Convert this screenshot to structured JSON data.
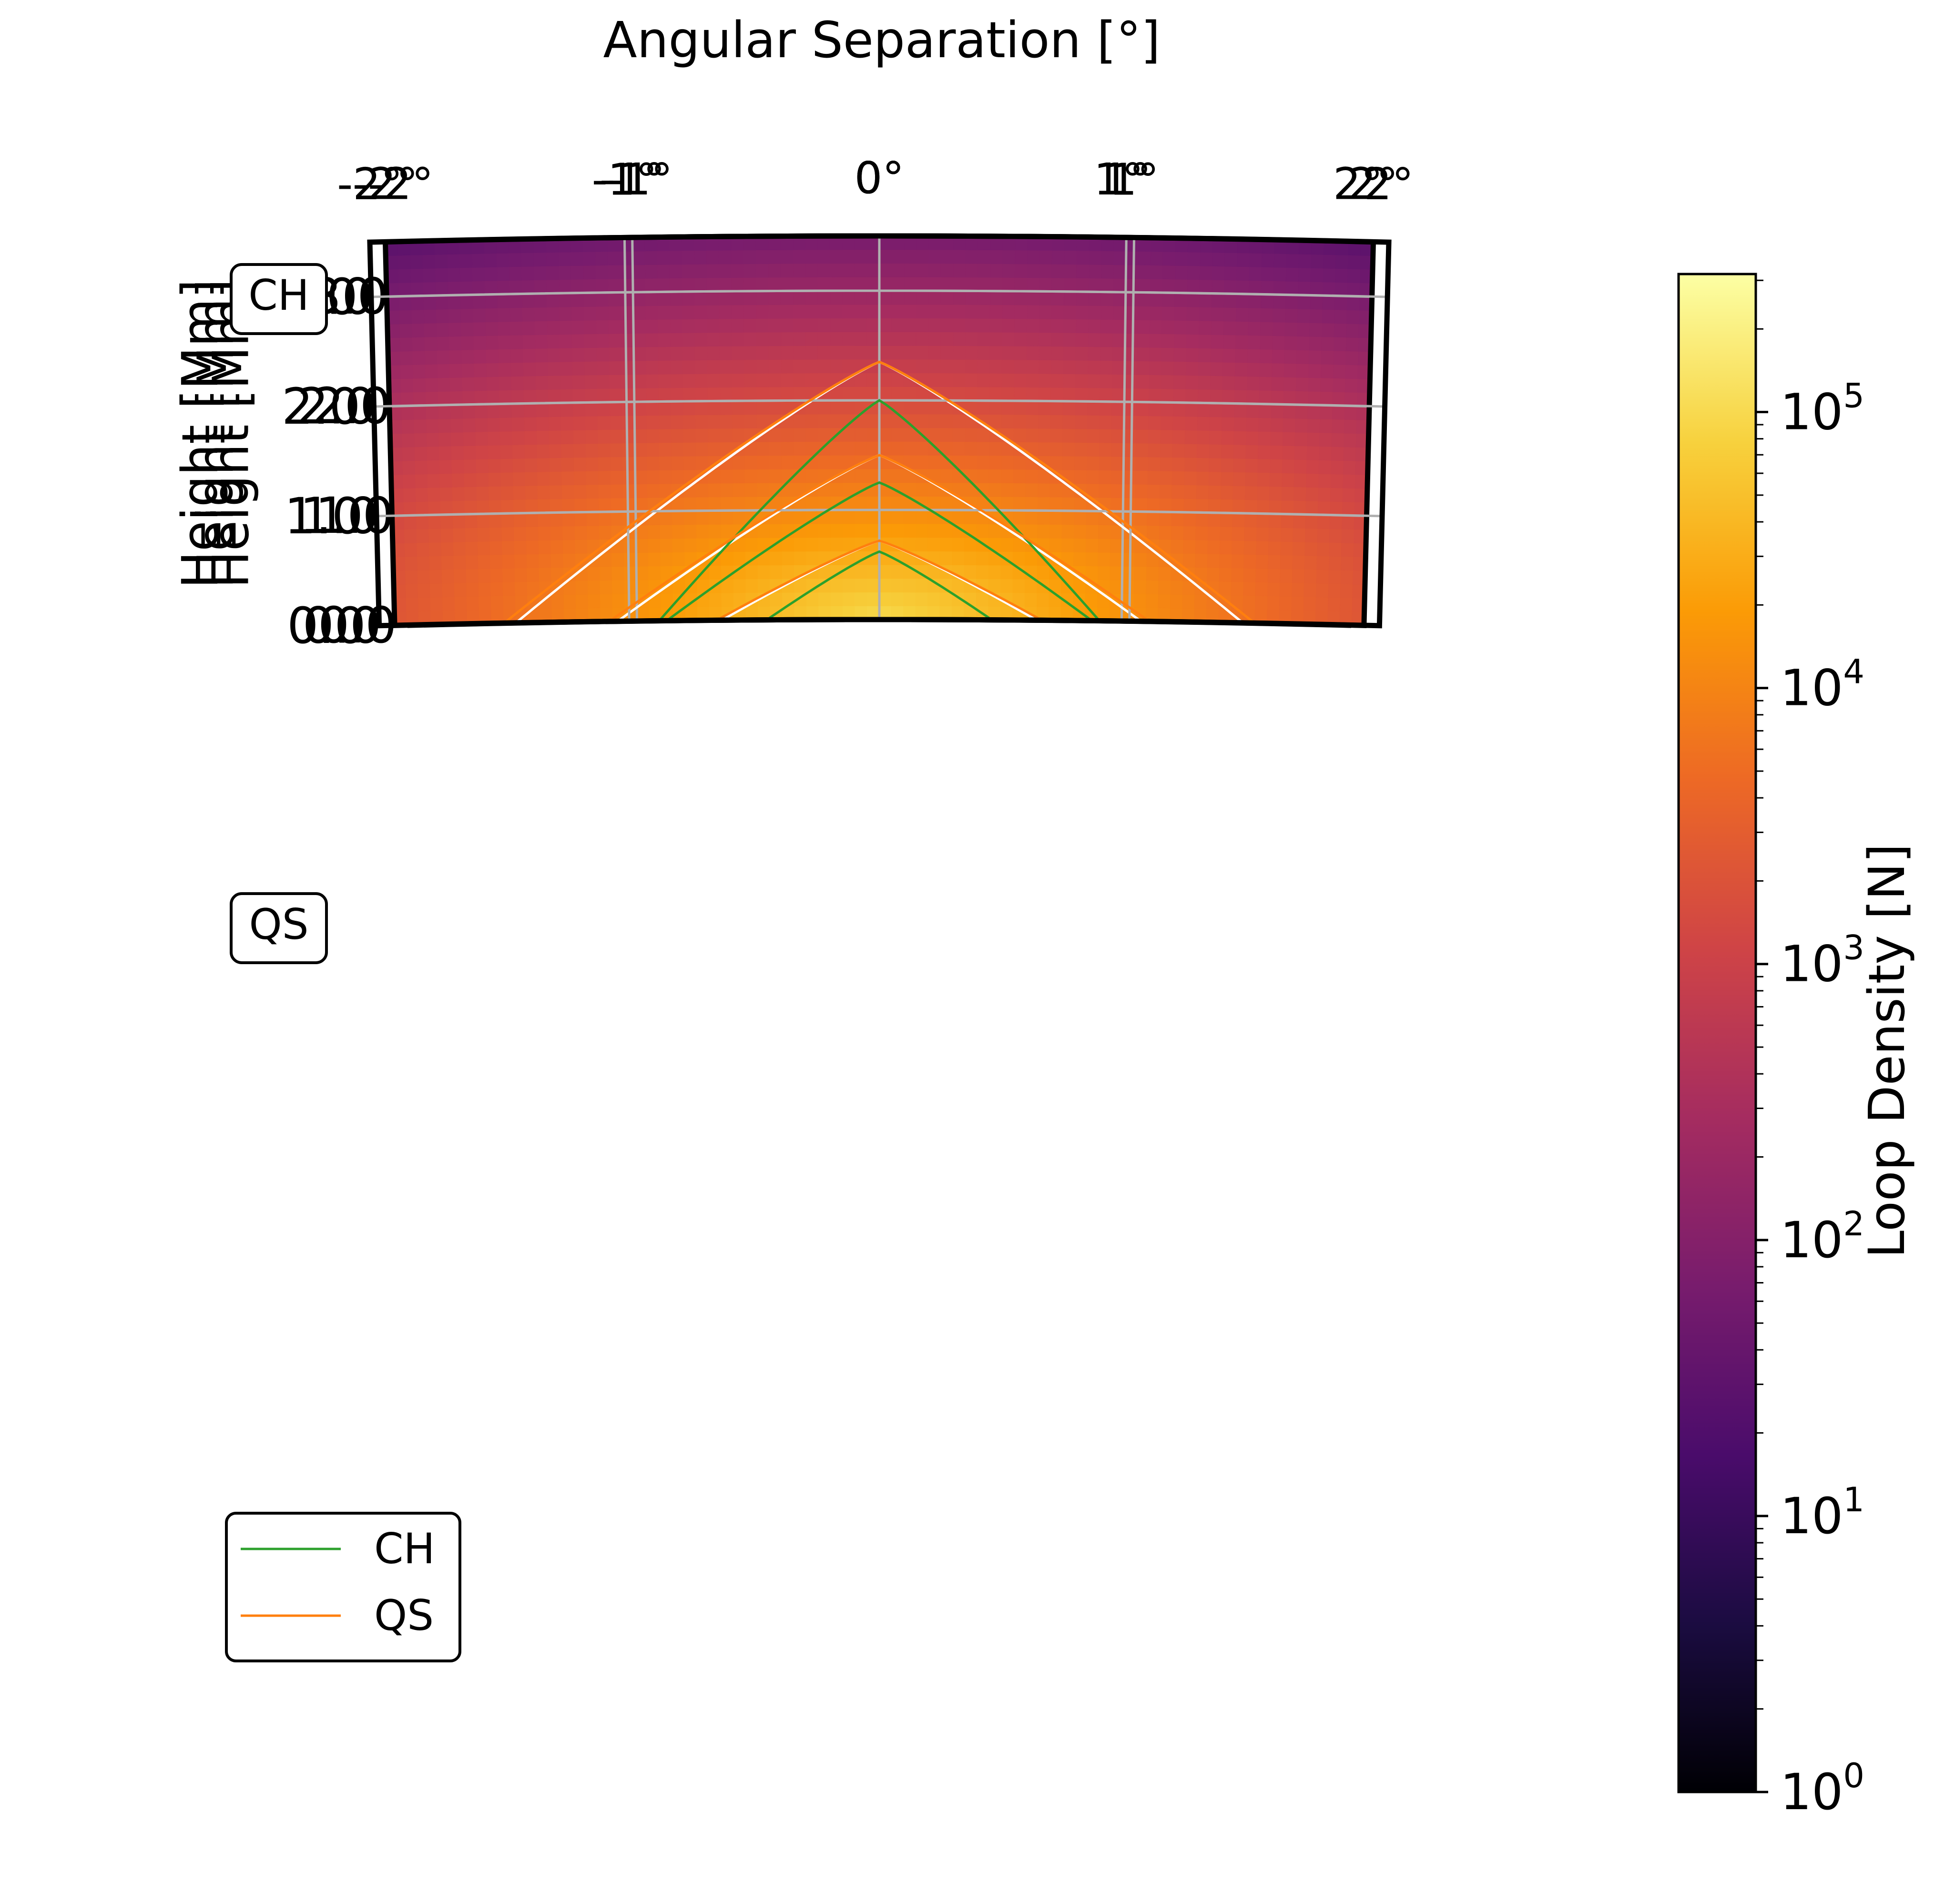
{
  "figure": {
    "title": "Angular Separation [°]",
    "panel_labels": [
      "CH",
      "QS"
    ]
  },
  "colorbar": {
    "label": "Loop Density [N]",
    "colormap": "inferno",
    "scale": "log",
    "range": [
      1,
      316228
    ],
    "ticks": [
      {
        "value": 1,
        "base": "10",
        "exp": "0"
      },
      {
        "value": 10,
        "base": "10",
        "exp": "1"
      },
      {
        "value": 100,
        "base": "10",
        "exp": "2"
      },
      {
        "value": 1000,
        "base": "10",
        "exp": "3"
      },
      {
        "value": 10000,
        "base": "10",
        "exp": "4"
      },
      {
        "value": 100000,
        "base": "10",
        "exp": "5"
      }
    ],
    "colors": [
      "#000004",
      "#1b0c41",
      "#4a0c6b",
      "#781c6d",
      "#a52c60",
      "#cf4446",
      "#ed6925",
      "#fb9b06",
      "#f7d13d",
      "#fcffa4"
    ]
  },
  "chart_data": [
    {
      "type": "heatmap",
      "panel": "CH",
      "xlabel": "Angular Separation [°]",
      "ylabel": "Height [Mm]",
      "xlim": [
        -2,
        2
      ],
      "ylim": [
        0,
        3.5
      ],
      "xticks": [
        "-2°",
        "-1°",
        "0°",
        "1°",
        "2°"
      ],
      "yticks": [
        "0.0",
        "1.0",
        "2.0",
        "3.0"
      ],
      "grid": true,
      "contours": [
        {
          "peak_height": 2.0,
          "half_width": 0.88
        },
        {
          "peak_height": 1.25,
          "half_width": 0.85
        },
        {
          "peak_height": 0.62,
          "half_width": 0.45
        }
      ]
    },
    {
      "type": "heatmap",
      "panel": "QS",
      "xlabel": "Angular Separation [°]",
      "ylabel": "Height [Mm]",
      "xlim": [
        -2,
        2
      ],
      "ylim": [
        0,
        3.5
      ],
      "xticks": [
        "-2°",
        "-1°",
        "0°",
        "1°",
        "2°"
      ],
      "yticks": [
        "0.0",
        "1.0",
        "2.0",
        "3.0"
      ],
      "grid": true,
      "contours": [
        {
          "peak_height": 2.35,
          "half_width": 1.5
        },
        {
          "peak_height": 1.5,
          "half_width": 1.08
        },
        {
          "peak_height": 0.72,
          "half_width": 0.65
        }
      ]
    },
    {
      "type": "line",
      "panel": "comparison",
      "xlabel": "Angular Separation [°]",
      "ylabel": "Height [Mm]",
      "xlim": [
        -2,
        2
      ],
      "ylim": [
        0,
        3.5
      ],
      "xticks": [
        "-2°",
        "-1°",
        "0°",
        "1°",
        "2°"
      ],
      "yticks": [
        "0.0",
        "1.0",
        "2.0",
        "3.0"
      ],
      "grid": true,
      "legend": "upper-left",
      "series": [
        {
          "name": "CH",
          "color": "#2ca02c",
          "contours": [
            {
              "peak_height": 2.0,
              "half_width": 0.88
            },
            {
              "peak_height": 1.25,
              "half_width": 0.85
            },
            {
              "peak_height": 0.62,
              "half_width": 0.45
            }
          ]
        },
        {
          "name": "QS",
          "color": "#ff7f0e",
          "contours": [
            {
              "peak_height": 2.35,
              "half_width": 1.5
            },
            {
              "peak_height": 1.5,
              "half_width": 1.08
            },
            {
              "peak_height": 0.72,
              "half_width": 0.65
            }
          ]
        }
      ]
    }
  ]
}
